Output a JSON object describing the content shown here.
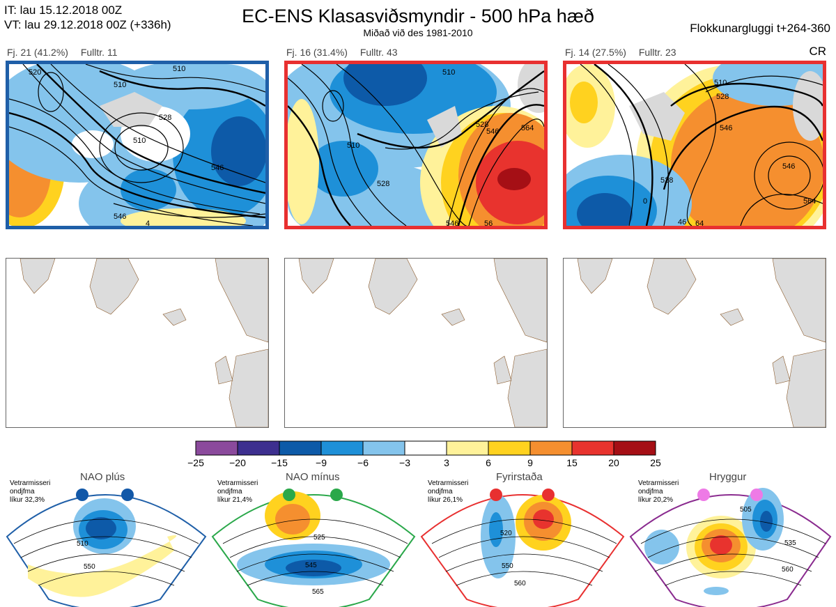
{
  "header": {
    "it_line": "IT: lau 15.12.2018 00Z",
    "vt_line": "VT: lau 29.12.2018 00Z  (+336h)",
    "title": "EC-ENS Klasasviðsmyndir - 500 hPa hæð",
    "subtitle": "Miðað við des 1981-2010",
    "window": "Flokkunargluggi t+264-360",
    "cr": "CR"
  },
  "clusters": [
    {
      "count": "Fj. 21 (41.2%)",
      "rep": "Fulltr. 11",
      "border": "#1f5fa8",
      "contour_labels": [
        "520",
        "510",
        "528",
        "510",
        "510",
        "546",
        "546",
        "4"
      ]
    },
    {
      "count": "Fj. 16 (31.4%)",
      "rep": "Fulltr. 43",
      "border": "#e83030",
      "contour_labels": [
        "510",
        "510",
        "528",
        "546",
        "564",
        "528",
        "546",
        "56"
      ]
    },
    {
      "count": "Fj. 14 (27.5%)",
      "rep": "Fulltr. 23",
      "border": "#e83030",
      "contour_labels": [
        "510",
        "528",
        "546",
        "528",
        "546",
        "564",
        "46",
        "64",
        "0"
      ]
    }
  ],
  "colorbar": {
    "ticks": [
      "−25",
      "−20",
      "−15",
      "−9",
      "−6",
      "−3",
      "3",
      "6",
      "9",
      "15",
      "20",
      "25"
    ],
    "colors": [
      "#8b4a9c",
      "#3d2f8f",
      "#0d5aa8",
      "#1e90d8",
      "#84c4ec",
      "#ffffff",
      "#fff29a",
      "#ffd21f",
      "#f58f2f",
      "#e8332e",
      "#a50f15"
    ]
  },
  "regimes": [
    {
      "title": "NAO plús",
      "note1": "Vetrarmisseri",
      "note2": "ondjfma",
      "note3": "líkur 32,3%",
      "color": "#1f5fa8",
      "dot": "#1258a8",
      "labels": [
        "510",
        "550"
      ]
    },
    {
      "title": "NAO mínus",
      "note1": "Vetrarmisseri",
      "note2": "ondjfma",
      "note3": "líkur 21,4%",
      "color": "#2aa84a",
      "dot": "#2aa84a",
      "labels": [
        "525",
        "545",
        "565"
      ]
    },
    {
      "title": "Fyrirstaða",
      "note1": "Vetrarmisseri",
      "note2": "ondjfma",
      "note3": "líkur 26,1%",
      "color": "#e83030",
      "dot": "#e83030",
      "labels": [
        "520",
        "550",
        "560"
      ]
    },
    {
      "title": "Hryggur",
      "note1": "Vetrarmisseri",
      "note2": "ondjfma",
      "note3": "líkur 20,2%",
      "color": "#8a2b8f",
      "dot": "#ee7ae6",
      "labels": [
        "505",
        "535",
        "560"
      ]
    }
  ],
  "chart_data": {
    "type": "heatmap",
    "title": "EC-ENS Klasasviðsmyndir - 500 hPa hæð",
    "subtitle": "Miðað við des 1981-2010",
    "colorbar_levels": [
      -25,
      -20,
      -15,
      -9,
      -6,
      -3,
      3,
      6,
      9,
      15,
      20,
      25
    ],
    "clusters": [
      {
        "count": 21,
        "percent": 41.2,
        "representative": 11
      },
      {
        "count": 16,
        "percent": 31.4,
        "representative": 43
      },
      {
        "count": 14,
        "percent": 27.5,
        "representative": 23
      }
    ],
    "regimes": [
      {
        "name": "NAO plús",
        "probability_percent": 32.3
      },
      {
        "name": "NAO mínus",
        "probability_percent": 21.4
      },
      {
        "name": "Fyrirstaða",
        "probability_percent": 26.1
      },
      {
        "name": "Hryggur",
        "probability_percent": 20.2
      }
    ]
  }
}
